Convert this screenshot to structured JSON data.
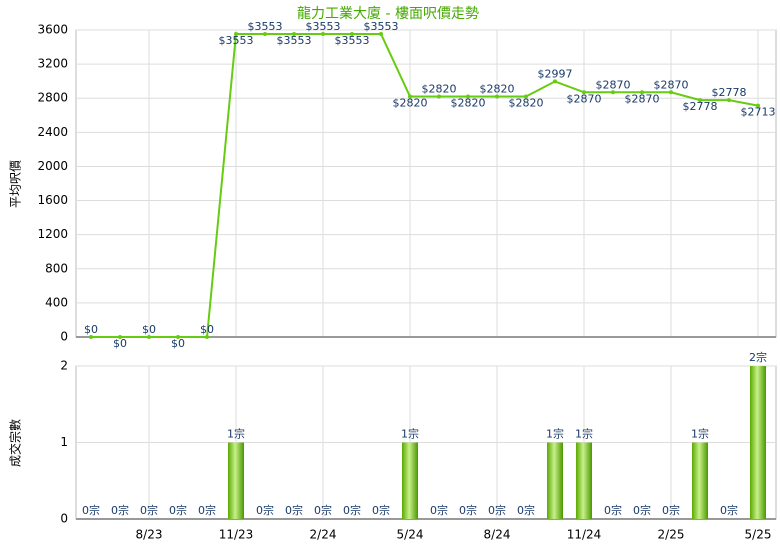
{
  "chart_data": [
    {
      "type": "line",
      "title": "龍力工業大廈 - 樓面呎價走勢",
      "y_label": "平均呎價",
      "color": "#66cc11",
      "values": [
        0,
        0,
        0,
        0,
        0,
        3553,
        3553,
        3553,
        3553,
        3553,
        3553,
        2820,
        2820,
        2820,
        2820,
        2820,
        2997,
        2870,
        2870,
        2870,
        2870,
        2778,
        2778,
        2713
      ],
      "value_labels": [
        "$0",
        "$0",
        "$0",
        "$0",
        "$0",
        "$3553",
        "$3553",
        "$3553",
        "$3553",
        "$3553",
        "$3553",
        "$2820",
        "$2820",
        "$2820",
        "$2820",
        "$2820",
        "$2997",
        "$2870",
        "$2870",
        "$2870",
        "$2870",
        "$2778",
        "$2778",
        "$2713"
      ],
      "ylim": [
        0,
        3600
      ],
      "yticks": [
        0,
        400,
        800,
        1200,
        1600,
        2000,
        2400,
        2800,
        3200,
        3600
      ],
      "grid": true
    },
    {
      "type": "bar",
      "y_label": "成交宗數",
      "color": "#66bb11",
      "categories": [
        null,
        null,
        "8/23",
        null,
        null,
        "11/23",
        null,
        null,
        "2/24",
        null,
        null,
        "5/24",
        null,
        null,
        "8/24",
        null,
        null,
        "11/24",
        null,
        null,
        "2/25",
        null,
        null,
        "5/25"
      ],
      "values": [
        0,
        0,
        0,
        0,
        0,
        1,
        0,
        0,
        0,
        0,
        0,
        1,
        0,
        0,
        0,
        0,
        1,
        1,
        0,
        0,
        0,
        1,
        0,
        2
      ],
      "value_labels": [
        "0宗",
        "0宗",
        "0宗",
        "0宗",
        "0宗",
        "1宗",
        "0宗",
        "0宗",
        "0宗",
        "0宗",
        "0宗",
        "1宗",
        "0宗",
        "0宗",
        "0宗",
        "0宗",
        "1宗",
        "1宗",
        "0宗",
        "0宗",
        "0宗",
        "1宗",
        "0宗",
        "2宗"
      ],
      "ylim": [
        0,
        2
      ],
      "yticks": [
        0,
        1,
        2
      ],
      "grid": true
    }
  ]
}
